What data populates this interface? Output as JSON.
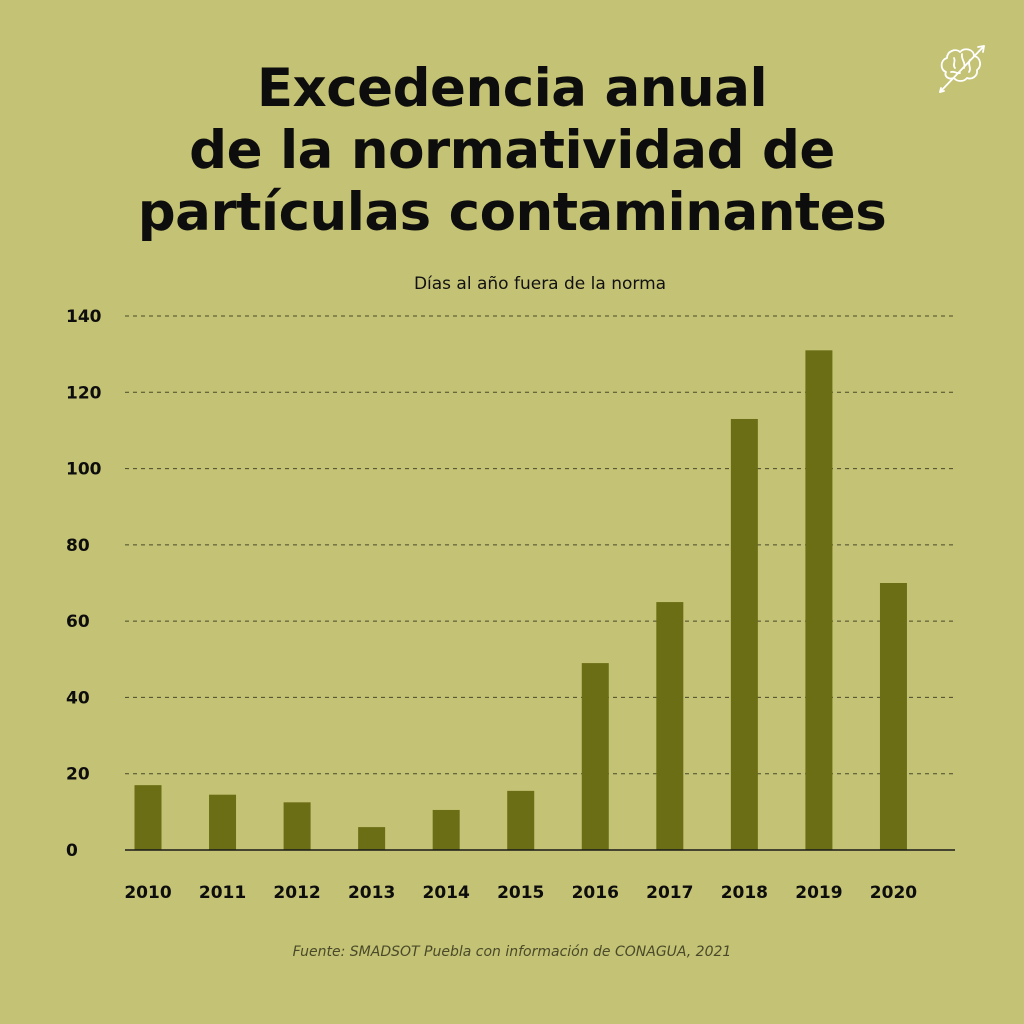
{
  "title_lines": [
    "Excedencia anual",
    "de la normatividad de",
    "partículas contaminantes"
  ],
  "subtitle": "Días al año fuera de la norma",
  "source": "Fuente: SMADSOT Puebla con información de CONAGUA, 2021",
  "logo": {
    "icon": "brain-arrow-icon"
  },
  "colors": {
    "background": "#c4c274",
    "bar": "#6b6e14",
    "text": "#0d0d0d",
    "grid": "#4a4a2a"
  },
  "chart_data": {
    "type": "bar",
    "title": "Excedencia anual de la normatividad de partículas contaminantes",
    "ylabel": "Días al año fuera de la norma",
    "xlabel": "",
    "categories": [
      "2010",
      "2011",
      "2012",
      "2013",
      "2014",
      "2015",
      "2016",
      "2017",
      "2018",
      "2019",
      "2020"
    ],
    "values": [
      17,
      14.5,
      12.5,
      6,
      10.5,
      15.5,
      49,
      65,
      113,
      131,
      70
    ],
    "ylim": [
      0,
      140
    ],
    "yticks": [
      0,
      20,
      40,
      60,
      80,
      100,
      120,
      140
    ],
    "grid": true,
    "grid_style": "dashed",
    "legend": "none"
  }
}
